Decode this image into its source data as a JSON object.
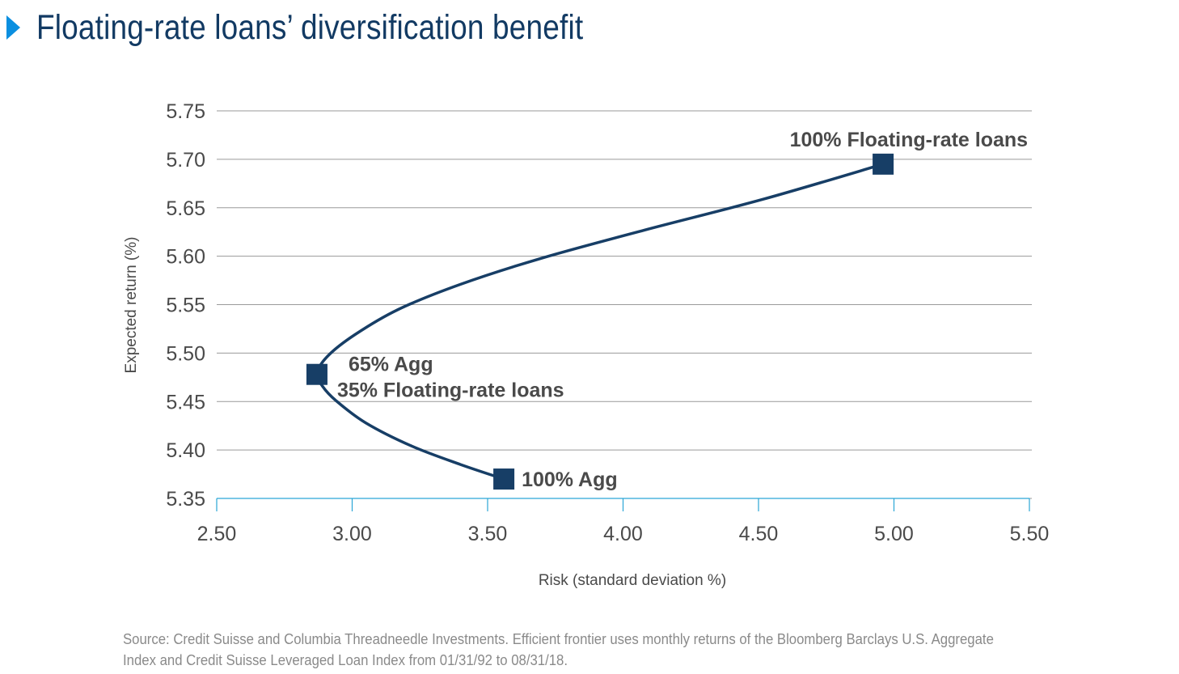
{
  "title": "Floating-rate loans’ diversification benefit",
  "colors": {
    "accent": "#0a8fe0",
    "title": "#123a63",
    "series": "#173e66",
    "grid": "#9a9a9a",
    "axis_tick": "#2aa6d6",
    "text": "#4a4a4a",
    "source": "#8a8a8a"
  },
  "chart_data": {
    "type": "line",
    "title": "Floating-rate loans’ diversification benefit",
    "xlabel": "Risk (standard deviation %)",
    "ylabel": "Expected return (%)",
    "xlim": [
      2.5,
      5.5
    ],
    "ylim": [
      5.35,
      5.75
    ],
    "x_ticks": [
      "2.50",
      "3.00",
      "3.50",
      "4.00",
      "4.50",
      "5.00",
      "5.50"
    ],
    "y_ticks": [
      "5.75",
      "5.70",
      "5.65",
      "5.60",
      "5.55",
      "5.50",
      "5.45",
      "5.40",
      "5.35"
    ],
    "grid": true,
    "series": [
      {
        "x": [
          3.56,
          3.4,
          3.22,
          3.05,
          2.94,
          2.89,
          2.87,
          2.91,
          3.01,
          3.17,
          3.4,
          3.7,
          4.08,
          4.52,
          4.96
        ],
        "y": [
          5.37,
          5.385,
          5.404,
          5.428,
          5.451,
          5.466,
          5.479,
          5.497,
          5.519,
          5.545,
          5.571,
          5.598,
          5.627,
          5.659,
          5.695
        ]
      }
    ],
    "annotated_points": [
      {
        "x": 3.56,
        "y": 5.37,
        "label": "100% Agg"
      },
      {
        "x": 2.87,
        "y": 5.478,
        "label": "65% Agg",
        "label2": "35% Floating-rate loans"
      },
      {
        "x": 4.96,
        "y": 5.695,
        "label": "100% Floating-rate loans"
      }
    ]
  },
  "source": {
    "line1": "Source: Credit Suisse and Columbia Threadneedle Investments. Efficient frontier uses monthly returns of the Bloomberg Barclays U.S. Aggregate",
    "line2": "Index and Credit Suisse Leveraged Loan Index from 01/31/92 to 08/31/18."
  }
}
